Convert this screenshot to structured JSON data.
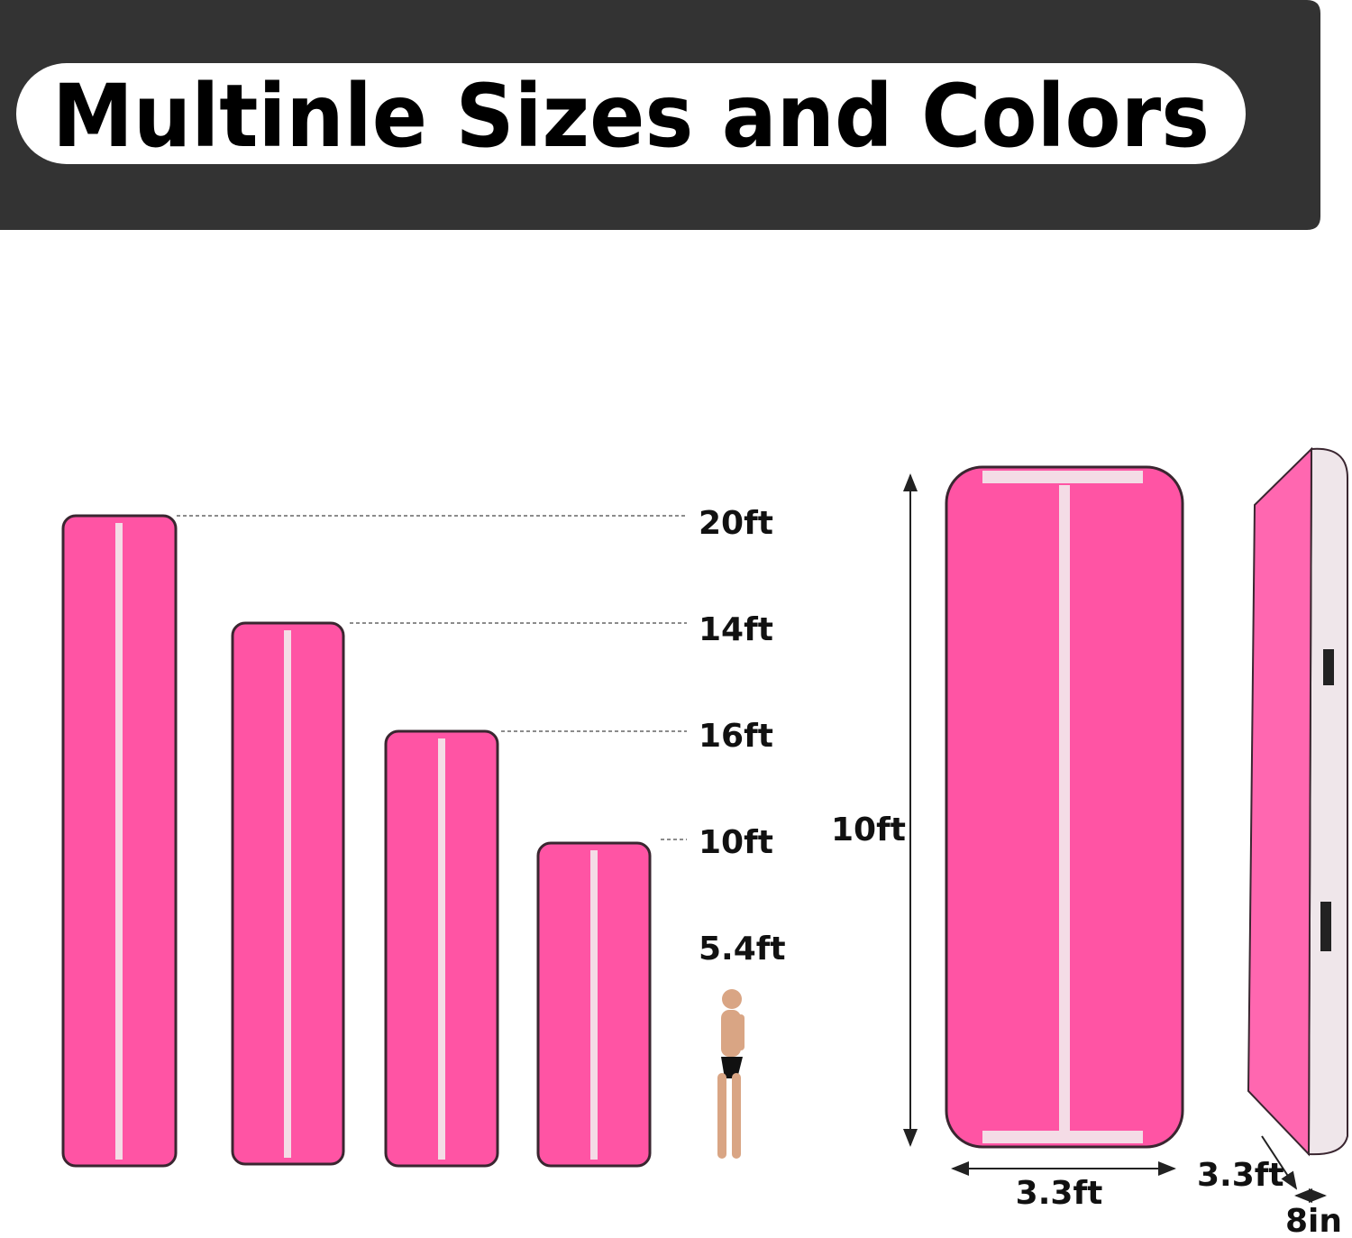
{
  "header": {
    "title": "Multinle Sizes and Colors"
  },
  "size_labels": [
    "20ft",
    "14ft",
    "16ft",
    "10ft",
    "5.4ft"
  ],
  "dimensions": {
    "length": "10ft",
    "width": "3.3ft",
    "side_width": "3.3ft",
    "thickness": "8in"
  }
}
